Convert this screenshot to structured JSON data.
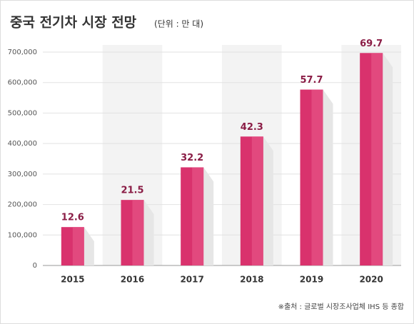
{
  "chart_data": {
    "type": "bar",
    "title": "중국 전기차 시장 전망",
    "subtitle": "(단위 : 만 대)",
    "categories": [
      "2015",
      "2016",
      "2017",
      "2018",
      "2019",
      "2020"
    ],
    "values": [
      126000,
      215000,
      322000,
      423000,
      577000,
      697000
    ],
    "value_labels": [
      "12.6",
      "21.5",
      "32.2",
      "42.3",
      "57.7",
      "69.7"
    ],
    "color": "#d9326d",
    "ylim": [
      0,
      700000
    ],
    "yticks": [
      {
        "value": 0,
        "label": "0"
      },
      {
        "value": 100000,
        "label": "100,000"
      },
      {
        "value": 200000,
        "label": "200,000"
      },
      {
        "value": 300000,
        "label": "300,000"
      },
      {
        "value": 400000,
        "label": "400,000"
      },
      {
        "value": 500000,
        "label": "500,000"
      },
      {
        "value": 600000,
        "label": "600,000"
      },
      {
        "value": 700000,
        "label": "700,000"
      }
    ],
    "grid": true,
    "source": "※출처 : 글로벌 시장조사업체 IHS 등 종합"
  }
}
